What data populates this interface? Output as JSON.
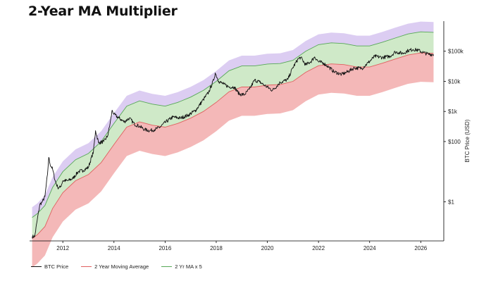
{
  "title": "2-Year MA Multiplier",
  "colors": {
    "price": "#111111",
    "ma": "#e06060",
    "ma5": "#57a857",
    "red_fill": "#f4b8b8",
    "green_fill": "#cfe9c8",
    "purple_fill": "#dccdf2"
  },
  "chart_data": {
    "type": "line",
    "title": "2-Year MA Multiplier",
    "ylabel": "BTC Price (USD)",
    "yscale": "log",
    "ylim": [
      0.05,
      1000000
    ],
    "xlim": [
      2010.7,
      2026.9
    ],
    "x_ticks": [
      {
        "value": 2012,
        "label": "2012"
      },
      {
        "value": 2014,
        "label": "2014"
      },
      {
        "value": 2016,
        "label": "2016"
      },
      {
        "value": 2018,
        "label": "2018"
      },
      {
        "value": 2020,
        "label": "2020"
      },
      {
        "value": 2022,
        "label": "2022"
      },
      {
        "value": 2024,
        "label": "2024"
      },
      {
        "value": 2026,
        "label": "2026"
      }
    ],
    "y_ticks": [
      {
        "value": 1,
        "label": "$1"
      },
      {
        "value": 100,
        "label": "$100"
      },
      {
        "value": 1000,
        "label": "$1k"
      },
      {
        "value": 10000,
        "label": "$10k"
      },
      {
        "value": 100000,
        "label": "$100k"
      }
    ],
    "legend_position": "bottom-left",
    "series": [
      {
        "name": "BTC Price",
        "x": [
          2010.8,
          2010.9,
          2011.0,
          2011.1,
          2011.2,
          2011.3,
          2011.4,
          2011.45,
          2011.5,
          2011.6,
          2011.7,
          2011.8,
          2011.9,
          2012.0,
          2012.2,
          2012.4,
          2012.6,
          2012.8,
          2013.0,
          2013.2,
          2013.28,
          2013.4,
          2013.6,
          2013.75,
          2013.85,
          2013.93,
          2014.0,
          2014.2,
          2014.4,
          2014.6,
          2014.8,
          2015.0,
          2015.2,
          2015.4,
          2015.6,
          2015.8,
          2016.0,
          2016.3,
          2016.6,
          2016.9,
          2017.2,
          2017.5,
          2017.7,
          2017.9,
          2017.96,
          2018.1,
          2018.3,
          2018.5,
          2018.7,
          2018.9,
          2019.1,
          2019.3,
          2019.5,
          2019.7,
          2019.9,
          2020.2,
          2020.5,
          2020.8,
          2021.0,
          2021.2,
          2021.3,
          2021.5,
          2021.7,
          2021.85,
          2022.0,
          2022.2,
          2022.4,
          2022.6,
          2022.9,
          2023.1,
          2023.4,
          2023.7,
          2023.95,
          2024.2,
          2024.5,
          2024.8,
          2025.0,
          2025.3,
          2025.5,
          2025.7,
          2025.9,
          2026.1,
          2026.3,
          2026.5
        ],
        "values": [
          0.07,
          0.07,
          0.25,
          0.8,
          1,
          1.5,
          8,
          30,
          18,
          12,
          5,
          3,
          3,
          5,
          5,
          6,
          10,
          11,
          14,
          47,
          230,
          90,
          100,
          150,
          400,
          1100,
          800,
          600,
          450,
          600,
          380,
          320,
          250,
          230,
          250,
          300,
          430,
          650,
          600,
          750,
          1100,
          2500,
          4300,
          11000,
          19000,
          10000,
          8000,
          6500,
          6500,
          3800,
          3600,
          5500,
          11000,
          9500,
          7300,
          5000,
          9200,
          11500,
          29000,
          55000,
          63000,
          35000,
          45000,
          65000,
          45000,
          40000,
          30000,
          21000,
          17000,
          20000,
          28000,
          27000,
          42000,
          68000,
          62000,
          68000,
          95000,
          85000,
          105000,
          115000,
          108000,
          90000,
          80000,
          78000
        ]
      },
      {
        "name": "2 Year Moving Average",
        "x": [
          2010.8,
          2011.0,
          2011.3,
          2011.6,
          2012.0,
          2012.5,
          2013.0,
          2013.5,
          2014.0,
          2014.5,
          2015.0,
          2015.5,
          2016.0,
          2016.5,
          2017.0,
          2017.5,
          2018.0,
          2018.5,
          2019.0,
          2019.5,
          2020.0,
          2020.5,
          2021.0,
          2021.5,
          2022.0,
          2022.5,
          2023.0,
          2023.5,
          2024.0,
          2024.5,
          2025.0,
          2025.5,
          2026.0,
          2026.5
        ],
        "values": [
          0.06,
          0.08,
          0.15,
          0.6,
          2,
          5,
          8,
          20,
          80,
          300,
          450,
          350,
          300,
          400,
          600,
          1000,
          2000,
          4500,
          6500,
          6500,
          7500,
          7800,
          10000,
          20000,
          33000,
          38000,
          36000,
          30000,
          30000,
          40000,
          55000,
          75000,
          88000,
          85000
        ]
      },
      {
        "name": "2 Yr MA x 5",
        "x": [
          2010.8,
          2011.0,
          2011.3,
          2011.6,
          2012.0,
          2012.5,
          2013.0,
          2013.5,
          2014.0,
          2014.5,
          2015.0,
          2015.5,
          2016.0,
          2016.5,
          2017.0,
          2017.5,
          2018.0,
          2018.5,
          2019.0,
          2019.5,
          2020.0,
          2020.5,
          2021.0,
          2021.5,
          2022.0,
          2022.5,
          2023.0,
          2023.5,
          2024.0,
          2024.5,
          2025.0,
          2025.5,
          2026.0,
          2026.5
        ],
        "values": [
          0.3,
          0.4,
          0.75,
          3,
          10,
          25,
          40,
          100,
          400,
          1500,
          2250,
          1750,
          1500,
          2000,
          3000,
          5000,
          10000,
          22500,
          32500,
          32500,
          37500,
          39000,
          50000,
          100000,
          165000,
          190000,
          180000,
          150000,
          150000,
          200000,
          275000,
          375000,
          440000,
          425000
        ]
      }
    ]
  }
}
